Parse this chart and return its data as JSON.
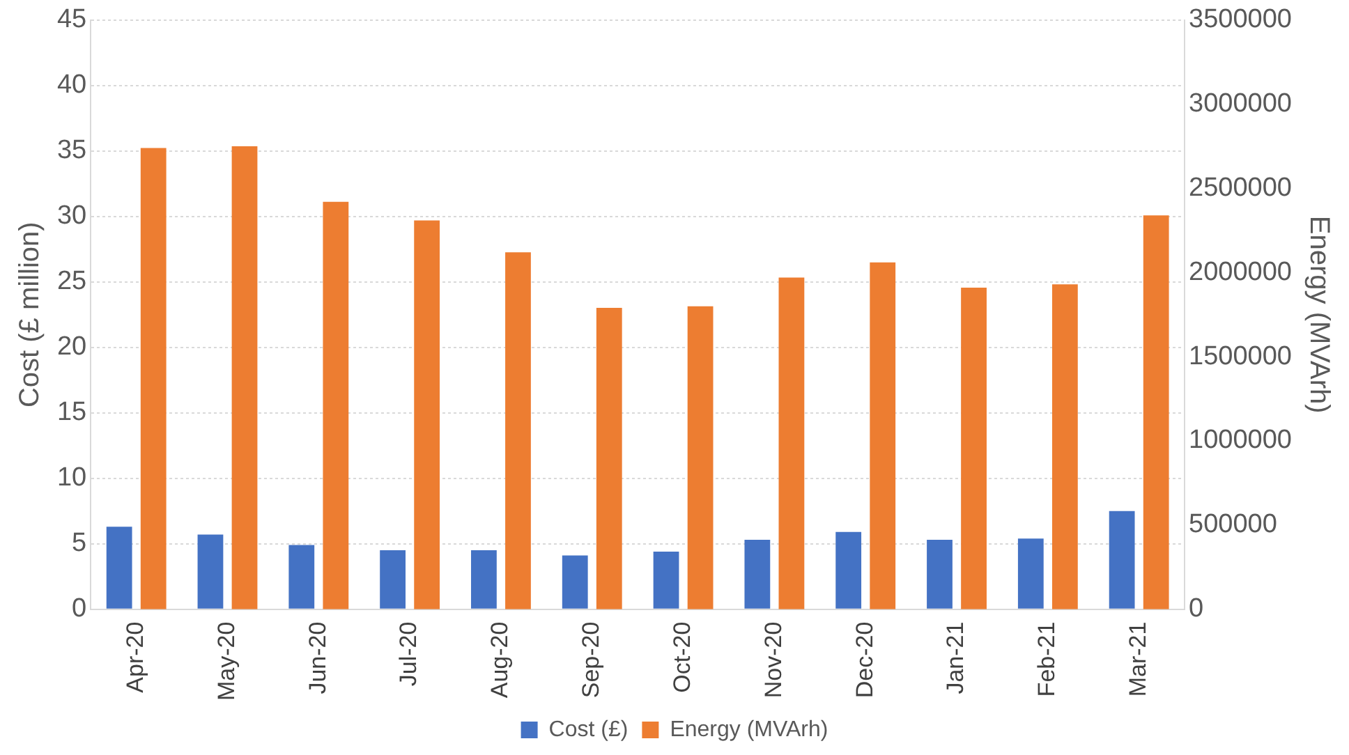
{
  "chart_data": {
    "type": "bar",
    "ylabel": "Cost (£ million)",
    "y2label": "Energy (MVArh)",
    "categories": [
      "Apr-20",
      "May-20",
      "Jun-20",
      "Jul-20",
      "Aug-20",
      "Sep-20",
      "Oct-20",
      "Nov-20",
      "Dec-20",
      "Jan-21",
      "Feb-21",
      "Mar-21"
    ],
    "series": [
      {
        "name": "Cost (£)",
        "color": "#4472c4",
        "values": [
          6.3,
          5.7,
          4.9,
          4.5,
          4.5,
          4.1,
          4.4,
          5.3,
          5.9,
          5.3,
          5.4,
          7.5
        ]
      },
      {
        "name": "Energy (MVArh)",
        "color": "#ed7d31",
        "axis": "y2",
        "values": [
          2740000,
          2750000,
          2420000,
          2310000,
          2120000,
          1790000,
          1800000,
          1970000,
          2060000,
          1910000,
          1930000,
          2340000
        ]
      }
    ],
    "ylim": [
      0,
      45
    ],
    "yticks": [
      0,
      5,
      10,
      15,
      20,
      25,
      30,
      35,
      40,
      45
    ],
    "y2lim": [
      0,
      3500000
    ],
    "y2ticks": [
      0,
      500000,
      1000000,
      1500000,
      2000000,
      2500000,
      3000000,
      3500000
    ],
    "grid": "y",
    "legend": "bottom"
  }
}
